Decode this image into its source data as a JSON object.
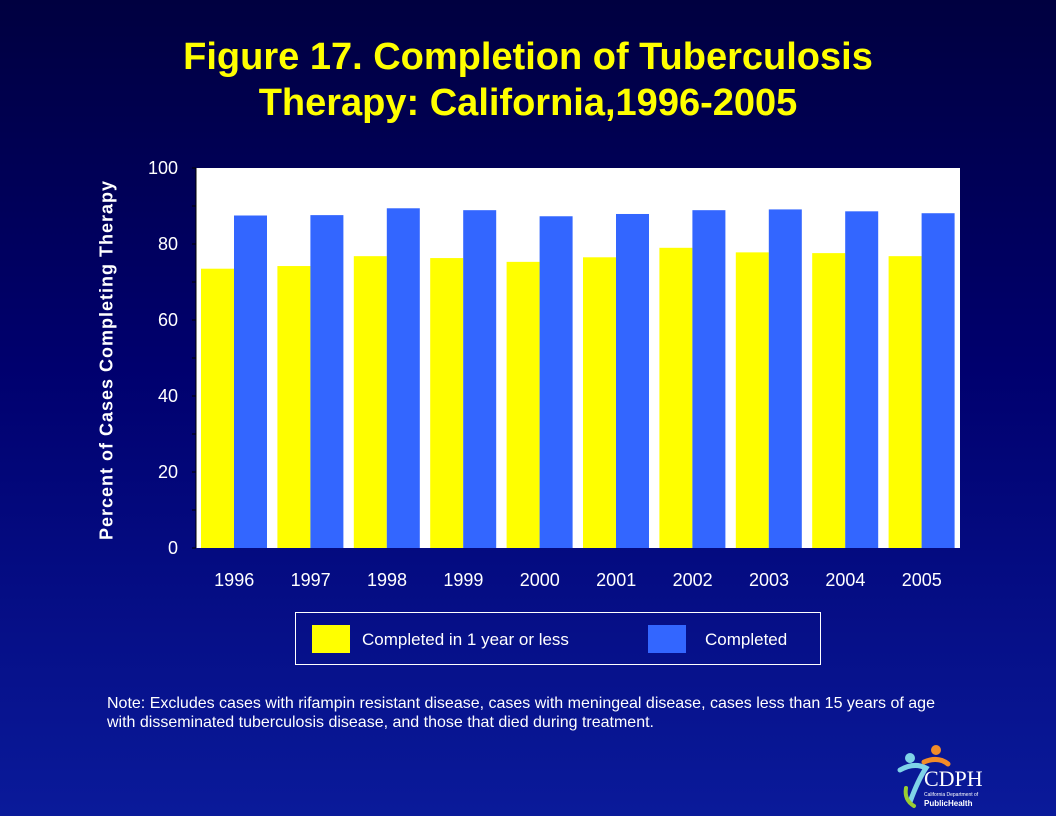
{
  "title_line1": "Figure 17. Completion of Tuberculosis",
  "title_line2": "Therapy: California,1996-2005",
  "chart_data": {
    "type": "bar",
    "categories": [
      "1996",
      "1997",
      "1998",
      "1999",
      "2000",
      "2001",
      "2002",
      "2003",
      "2004",
      "2005"
    ],
    "series": [
      {
        "name": "Completed in 1 year or less",
        "color": "#ffff00",
        "values": [
          73.5,
          74.2,
          76.8,
          76.3,
          75.3,
          76.5,
          79.0,
          77.8,
          77.6,
          76.8
        ]
      },
      {
        "name": "Completed",
        "color": "#3366ff",
        "values": [
          87.5,
          87.6,
          89.4,
          88.9,
          87.3,
          87.9,
          88.9,
          89.1,
          88.6,
          88.1
        ]
      }
    ],
    "ylabel": "Percent of Cases Completing Therapy",
    "ylim": [
      0,
      100
    ],
    "yticks": [
      "0",
      "20",
      "40",
      "60",
      "80",
      "100"
    ],
    "grid": false,
    "legend_position": "bottom"
  },
  "note": "Note: Excludes cases with rifampin resistant disease, cases with meningeal disease, cases less than 15 years of age with disseminated tuberculosis disease, and those that died during treatment.",
  "logo": {
    "text_main": "CDPH",
    "text_sub": "California Department of",
    "text_brand": "PublicHealth"
  },
  "colors": {
    "background": "#00006e",
    "title": "#ffff00",
    "text": "#ffffff",
    "plot_area": "#ffffff"
  }
}
